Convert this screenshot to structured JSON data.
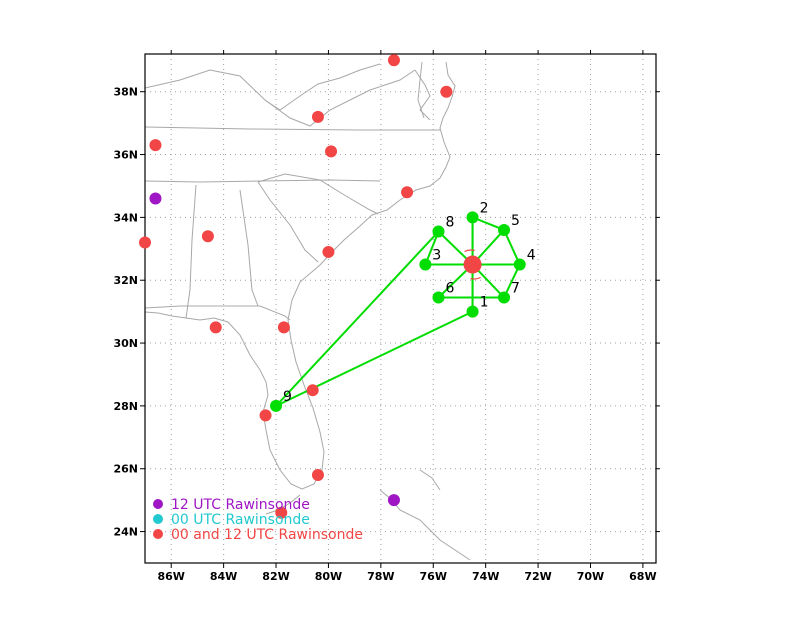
{
  "map": {
    "lon_range": [
      -87,
      -67.5
    ],
    "lat_range": [
      23,
      39.2
    ],
    "lon_ticks": [
      -86,
      -84,
      -82,
      -80,
      -78,
      -76,
      -74,
      -72,
      -70,
      -68
    ],
    "lat_ticks": [
      24,
      26,
      28,
      30,
      32,
      34,
      36,
      38
    ],
    "lon_tick_labels": [
      "86W",
      "84W",
      "82W",
      "80W",
      "78W",
      "76W",
      "74W",
      "72W",
      "70W",
      "68W"
    ],
    "lat_tick_labels": [
      "24N",
      "26N",
      "28N",
      "30N",
      "32N",
      "34N",
      "36N",
      "38N"
    ],
    "grid": "dotted",
    "colors": {
      "drop_points": "#00dd00",
      "rawinsonde_00_12": "#f24545",
      "rawinsonde_12": "#9f17c4",
      "rawinsonde_00": "#22c9d0",
      "center": "#f24545",
      "coast": "#a8a8a8"
    }
  },
  "center": {
    "lon": -74.5,
    "lat": 32.5
  },
  "drop_points": [
    {
      "label": "1",
      "lon": -74.5,
      "lat": 31.0
    },
    {
      "label": "2",
      "lon": -74.5,
      "lat": 34.0
    },
    {
      "label": "3",
      "lon": -76.3,
      "lat": 32.5
    },
    {
      "label": "4",
      "lon": -72.7,
      "lat": 32.5
    },
    {
      "label": "5",
      "lon": -73.3,
      "lat": 33.6
    },
    {
      "label": "6",
      "lon": -75.8,
      "lat": 31.45
    },
    {
      "label": "7",
      "lon": -73.3,
      "lat": 31.45
    },
    {
      "label": "8",
      "lon": -75.8,
      "lat": 33.55
    },
    {
      "label": "9",
      "lon": -82.0,
      "lat": 28.0
    }
  ],
  "flight_path": [
    "9",
    "8",
    "3",
    "4",
    "5",
    "2",
    "1",
    "9"
  ],
  "rawinsondes_00_12": [
    {
      "lon": -77.5,
      "lat": 39.0
    },
    {
      "lon": -75.5,
      "lat": 38.0
    },
    {
      "lon": -80.4,
      "lat": 37.2
    },
    {
      "lon": -79.9,
      "lat": 36.1
    },
    {
      "lon": -86.6,
      "lat": 36.3
    },
    {
      "lon": -77.0,
      "lat": 34.8
    },
    {
      "lon": -87.0,
      "lat": 33.2
    },
    {
      "lon": -84.6,
      "lat": 33.4
    },
    {
      "lon": -80.0,
      "lat": 32.9
    },
    {
      "lon": -84.3,
      "lat": 30.5
    },
    {
      "lon": -81.7,
      "lat": 30.5
    },
    {
      "lon": -80.6,
      "lat": 28.5
    },
    {
      "lon": -82.4,
      "lat": 27.7
    },
    {
      "lon": -80.4,
      "lat": 25.8
    },
    {
      "lon": -81.8,
      "lat": 24.6
    }
  ],
  "rawinsondes_12": [
    {
      "lon": -86.6,
      "lat": 34.6
    },
    {
      "lon": -77.5,
      "lat": 25.0
    }
  ],
  "legend": [
    {
      "text": "12 UTC Rawinsonde",
      "color_key": "rawinsonde_12"
    },
    {
      "text": "00 UTC Rawinsonde",
      "color_key": "rawinsonde_00"
    },
    {
      "text": "00 and 12 UTC Rawinsonde",
      "color_key": "rawinsonde_00_12"
    }
  ]
}
